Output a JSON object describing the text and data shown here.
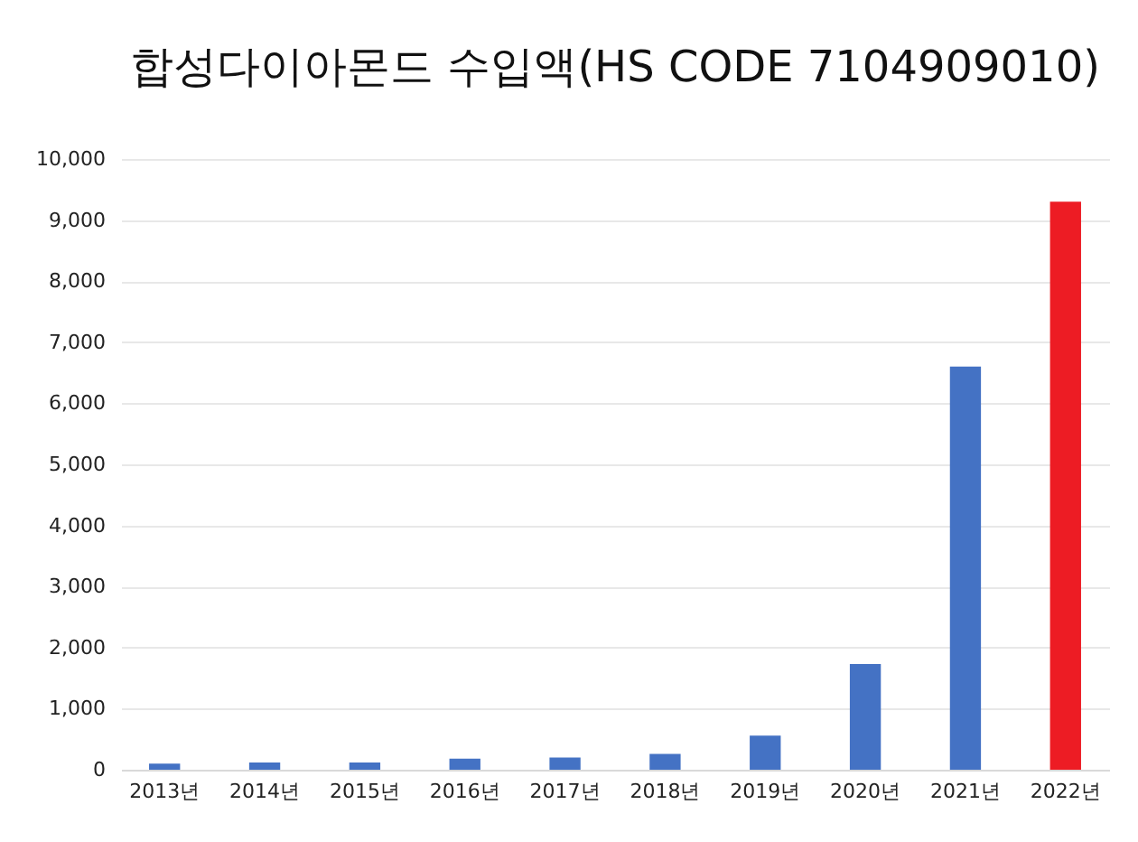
{
  "chart_data": {
    "type": "bar",
    "title": "합성다이아몬드 수입액(HS CODE 7104909010)",
    "categories": [
      "2013년",
      "2014년",
      "2015년",
      "2016년",
      "2017년",
      "2018년",
      "2019년",
      "2020년",
      "2021년",
      "2022년"
    ],
    "values": [
      100,
      120,
      120,
      180,
      200,
      260,
      560,
      1730,
      6600,
      9300
    ],
    "colors": [
      "#4472c4",
      "#4472c4",
      "#4472c4",
      "#4472c4",
      "#4472c4",
      "#4472c4",
      "#4472c4",
      "#4472c4",
      "#4472c4",
      "#ed1c24"
    ],
    "ylim": [
      0,
      10000
    ],
    "yticks": [
      0,
      {
        "value": 1000,
        "label": "1,000"
      },
      {
        "value": 2000,
        "label": "2,000"
      },
      {
        "value": 3000,
        "label": "3,000"
      },
      {
        "value": 4000,
        "label": "4,000"
      },
      {
        "value": 5000,
        "label": "5,000"
      },
      {
        "value": 6000,
        "label": "6,000"
      },
      {
        "value": 7000,
        "label": "7,000"
      },
      {
        "value": 8000,
        "label": "8,000"
      },
      {
        "value": 9000,
        "label": "9,000"
      },
      {
        "value": 10000,
        "label": "10,000"
      }
    ],
    "grid": "y"
  }
}
